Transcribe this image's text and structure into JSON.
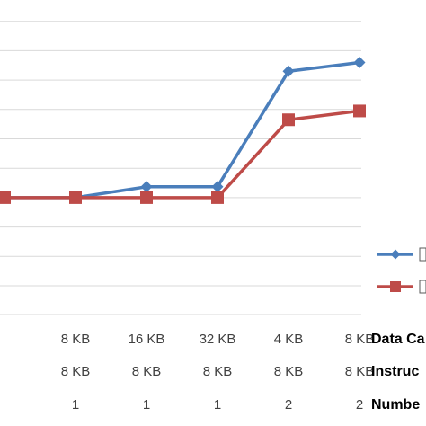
{
  "chart_data": {
    "type": "line",
    "categories": [
      [
        "",
        "",
        ""
      ],
      [
        "8 KB",
        "8 KB",
        "1"
      ],
      [
        "16 KB",
        "8 KB",
        "1"
      ],
      [
        "32 KB",
        "8 KB",
        "1"
      ],
      [
        "4 KB",
        "8 KB",
        "2"
      ],
      [
        "8 KB",
        "8 KB",
        "2"
      ]
    ],
    "row_labels": [
      "Data Ca",
      "Instruc",
      "Numbe"
    ],
    "series": [
      {
        "color": "#4a7ebb",
        "marker": "diamond",
        "values": [
          0.0,
          0.0,
          0.37,
          0.37,
          4.3,
          4.6
        ]
      },
      {
        "color": "#be4b48",
        "marker": "square",
        "values": [
          0.0,
          0.0,
          0.0,
          0.0,
          2.65,
          2.95
        ]
      }
    ],
    "legend_position": "right",
    "grid": true,
    "ylim": [
      -3,
      6
    ]
  }
}
